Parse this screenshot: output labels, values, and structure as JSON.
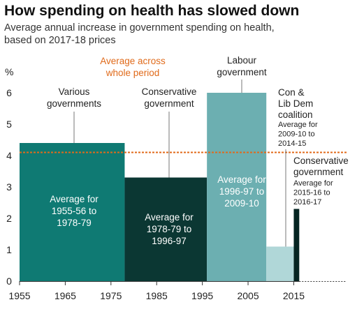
{
  "chart_data": {
    "type": "bar",
    "title": "How spending on health has slowed down",
    "subtitle_lines": [
      "Average annual increase in government spending on health,",
      "based on 2017-18 prices"
    ],
    "ylabel": "%",
    "ylim": [
      0,
      6.5
    ],
    "yticks": [
      "0",
      "1",
      "2",
      "3",
      "4",
      "5",
      "6"
    ],
    "xlim": [
      1955,
      2018
    ],
    "xticks": [
      "1955",
      "1965",
      "1975",
      "1985",
      "1995",
      "2005",
      "2015"
    ],
    "grid": false,
    "bars": [
      {
        "start": 1955,
        "end": 1978,
        "value": 4.4,
        "color": "#0f7a73",
        "label_lines": [
          "Average for",
          "1955-56 to",
          "1978-79"
        ],
        "govt_lines": [
          "Various",
          "governments"
        ]
      },
      {
        "start": 1978,
        "end": 1996,
        "value": 3.3,
        "color": "#0b3733",
        "label_lines": [
          "Average for",
          "1978-79 to",
          "1996-97"
        ],
        "govt_lines": [
          "Conservative",
          "government"
        ]
      },
      {
        "start": 1996,
        "end": 2009,
        "value": 6.0,
        "color": "#6cafb1",
        "label_lines": [
          "Average for",
          "1996-97 to",
          "2009-10"
        ],
        "govt_lines": [
          "Labour",
          "government"
        ]
      },
      {
        "start": 2009,
        "end": 2015,
        "value": 1.1,
        "color": "#b0d7d8",
        "label_lines": [
          "Average for",
          "2009-10 to",
          "2014-15"
        ],
        "govt_lines": [
          "Con &",
          "Lib Dem",
          "coalition"
        ]
      },
      {
        "start": 2015,
        "end": 2016.2,
        "value": 2.3,
        "color": "#062522",
        "label_lines": [
          "Average for",
          "2015-16 to",
          "2016-17"
        ],
        "govt_lines": [
          "Conservative",
          "government"
        ]
      }
    ],
    "average_line": {
      "value": 4.1,
      "label_lines": [
        "Average across",
        "whole period"
      ],
      "color": "#e06a1a"
    }
  }
}
